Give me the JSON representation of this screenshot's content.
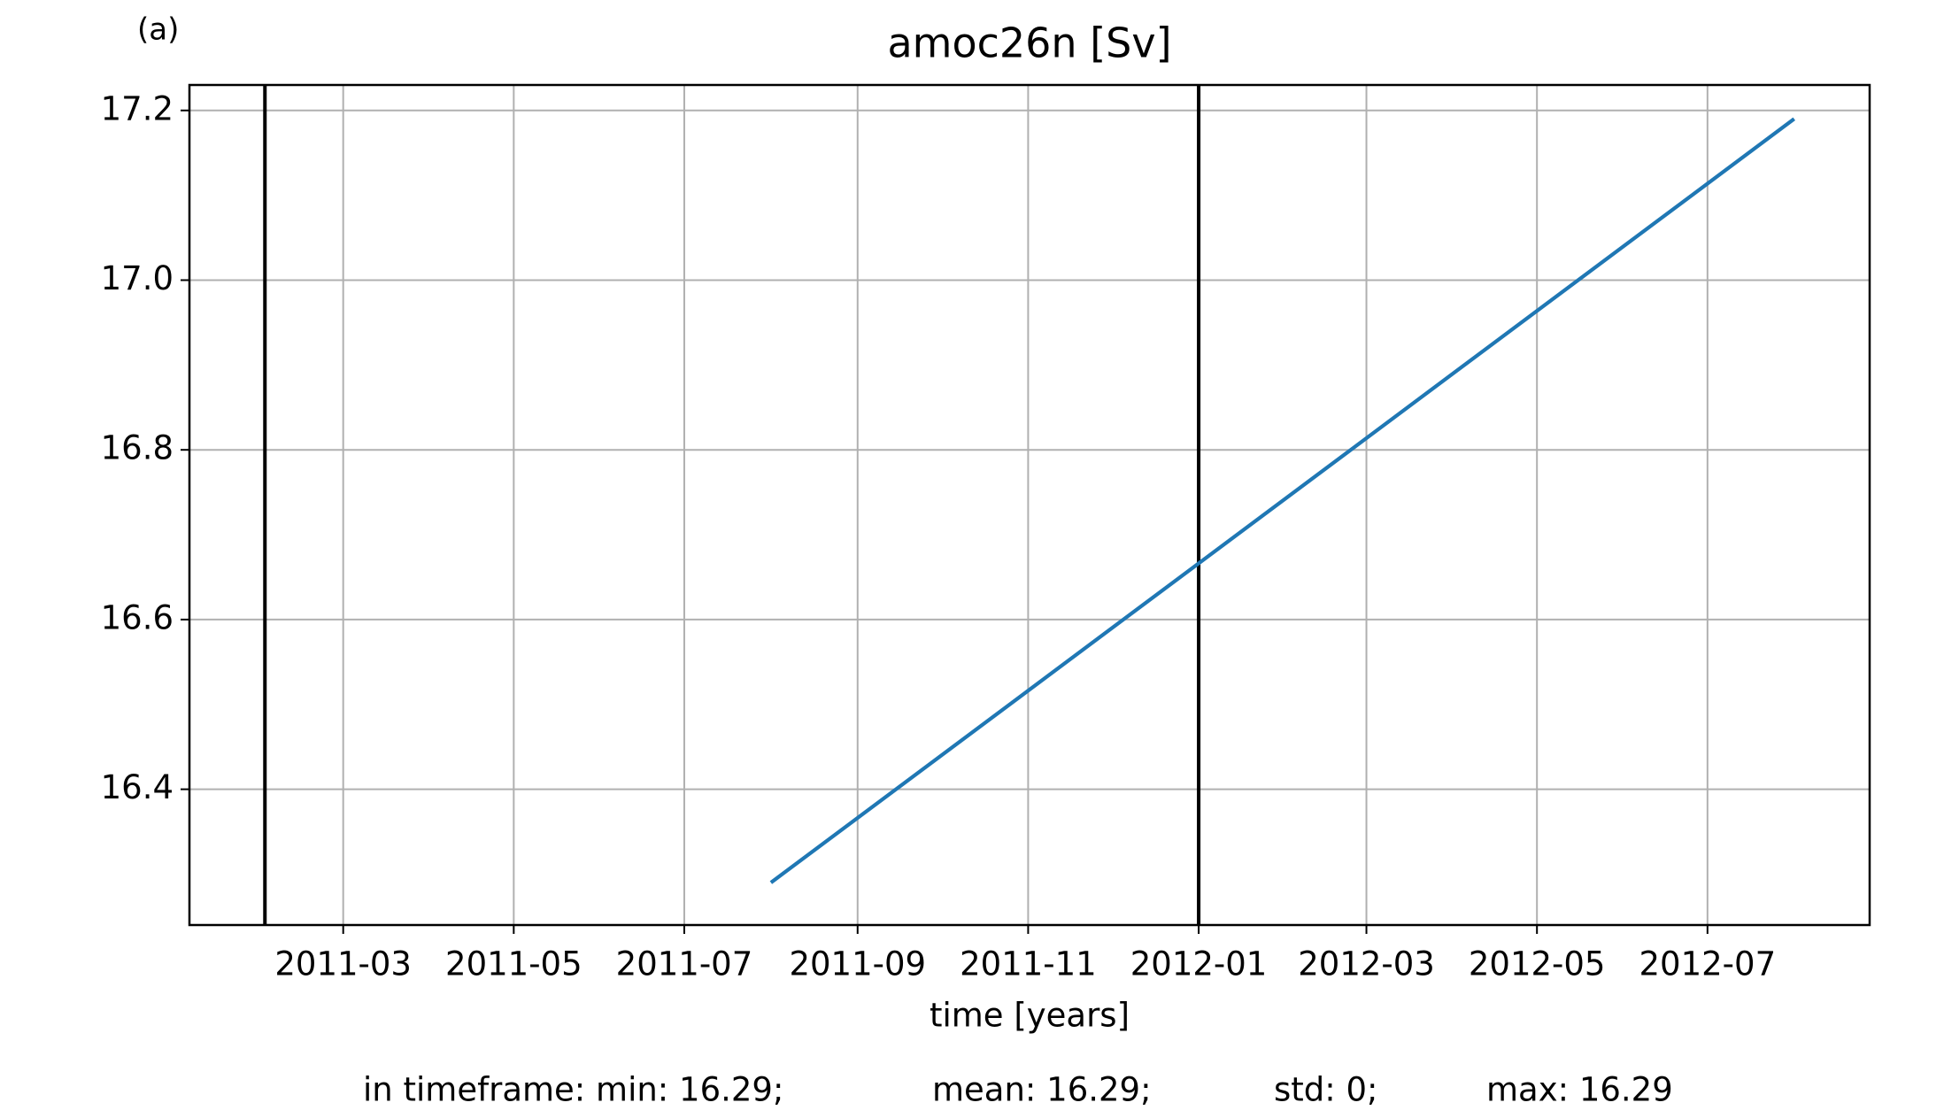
{
  "chart_data": {
    "type": "line",
    "panel_label": "(a)",
    "title": "amoc26n [Sv]",
    "x_label": "time [years]",
    "x": [
      "2011-08",
      "2012-08"
    ],
    "values": [
      16.29,
      17.19
    ],
    "color": "#1f77b4",
    "vlines": [
      "2011-02",
      "2012-01"
    ],
    "vline_color": "#000000",
    "xlim": [
      "2011-01-05",
      "2012-08-28"
    ],
    "xticks": [
      "2011-03",
      "2011-05",
      "2011-07",
      "2011-09",
      "2011-11",
      "2012-01",
      "2012-03",
      "2012-05",
      "2012-07"
    ],
    "ylim": [
      16.24,
      17.23
    ],
    "yticks": [
      16.4,
      16.6,
      16.8,
      {
        "value": 17,
        "label": "17.0"
      },
      17.2
    ],
    "grid": true,
    "footer": [
      "in timeframe: min: 16.29;",
      "mean: 16.29;",
      "std: 0;",
      "max: 16.29"
    ]
  }
}
